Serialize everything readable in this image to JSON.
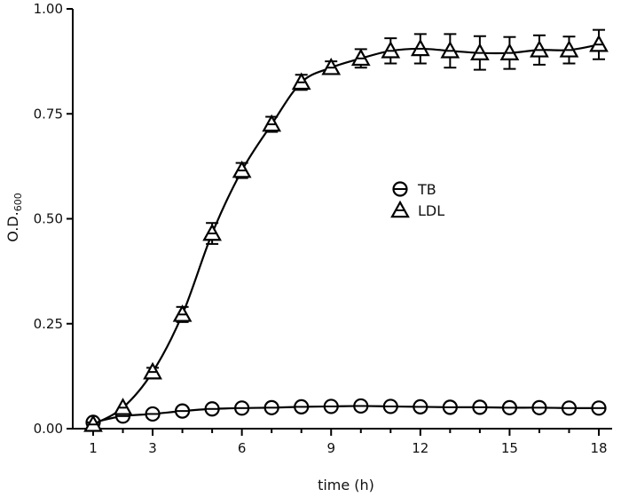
{
  "chart_data": {
    "type": "line",
    "xlabel": "time (h)",
    "ylabel": {
      "main": "O.D.",
      "subscript": "600"
    },
    "xlim": [
      1,
      18
    ],
    "ylim": [
      0,
      1.0
    ],
    "x_ticks": [
      1,
      3,
      6,
      9,
      12,
      15,
      18
    ],
    "y_ticks": [
      "0.00",
      "0.25",
      "0.50",
      "0.75",
      "1.00"
    ],
    "legend_position": "center-right",
    "grid": false,
    "x": [
      1,
      2,
      3,
      4,
      5,
      6,
      7,
      8,
      9,
      10,
      11,
      12,
      13,
      14,
      15,
      16,
      17,
      18
    ],
    "series": [
      {
        "name": "TB",
        "marker": "circle",
        "values": [
          0.015,
          0.03,
          0.035,
          0.042,
          0.047,
          0.049,
          0.05,
          0.052,
          0.053,
          0.054,
          0.053,
          0.052,
          0.051,
          0.051,
          0.05,
          0.05,
          0.049,
          0.049
        ],
        "errors": [
          0.005,
          0.004,
          0.004,
          0.004,
          0.004,
          0.004,
          0.004,
          0.004,
          0.004,
          0.004,
          0.004,
          0.004,
          0.004,
          0.004,
          0.004,
          0.004,
          0.004,
          0.004
        ]
      },
      {
        "name": "LDL",
        "marker": "triangle",
        "values": [
          0.01,
          0.05,
          0.135,
          0.272,
          0.465,
          0.615,
          0.725,
          0.825,
          0.86,
          0.882,
          0.9,
          0.905,
          0.9,
          0.895,
          0.895,
          0.902,
          0.902,
          0.915
        ],
        "errors": [
          0.004,
          0.006,
          0.01,
          0.018,
          0.025,
          0.018,
          0.018,
          0.018,
          0.015,
          0.022,
          0.03,
          0.035,
          0.04,
          0.04,
          0.038,
          0.035,
          0.032,
          0.035
        ]
      }
    ]
  }
}
